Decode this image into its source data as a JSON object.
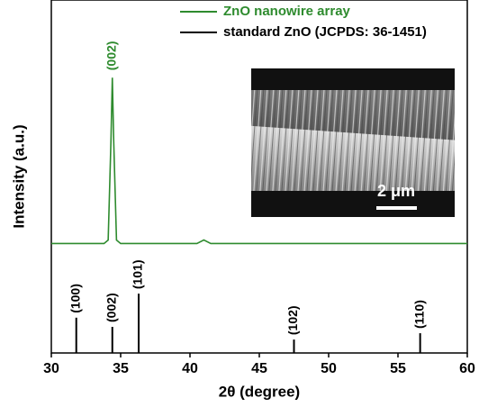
{
  "chart_data": {
    "type": "line",
    "xlabel": "2θ (degree)",
    "ylabel": "Intensity (a.u.)",
    "xlim": [
      30,
      60
    ],
    "xticks": [
      30,
      35,
      40,
      45,
      50,
      55,
      60
    ],
    "ylim": [
      0,
      100
    ],
    "series": [
      {
        "name": "ZnO nanowire array",
        "color": "#2e8b2e",
        "style": "line",
        "x": [
          30,
          33.8,
          34.1,
          34.3,
          34.4,
          34.5,
          34.7,
          35,
          40.5,
          41,
          41.5,
          60
        ],
        "values": [
          31,
          31,
          32,
          60,
          78,
          60,
          32,
          31,
          31,
          32,
          31,
          31
        ]
      },
      {
        "name": "standard ZnO (JCPDS: 36-1451)",
        "color": "#000000",
        "style": "stick",
        "x": [
          31.8,
          34.4,
          36.3,
          47.5,
          56.6
        ],
        "values": [
          10,
          7.4,
          16.8,
          3.8,
          5.6
        ],
        "labels": [
          "(100)",
          "(002)",
          "(101)",
          "(102)",
          "(110)"
        ]
      }
    ],
    "annotations": [
      {
        "text": "(002)",
        "x": 34.4,
        "series": 0
      }
    ]
  },
  "inset": {
    "scale_label": "2 μm"
  }
}
